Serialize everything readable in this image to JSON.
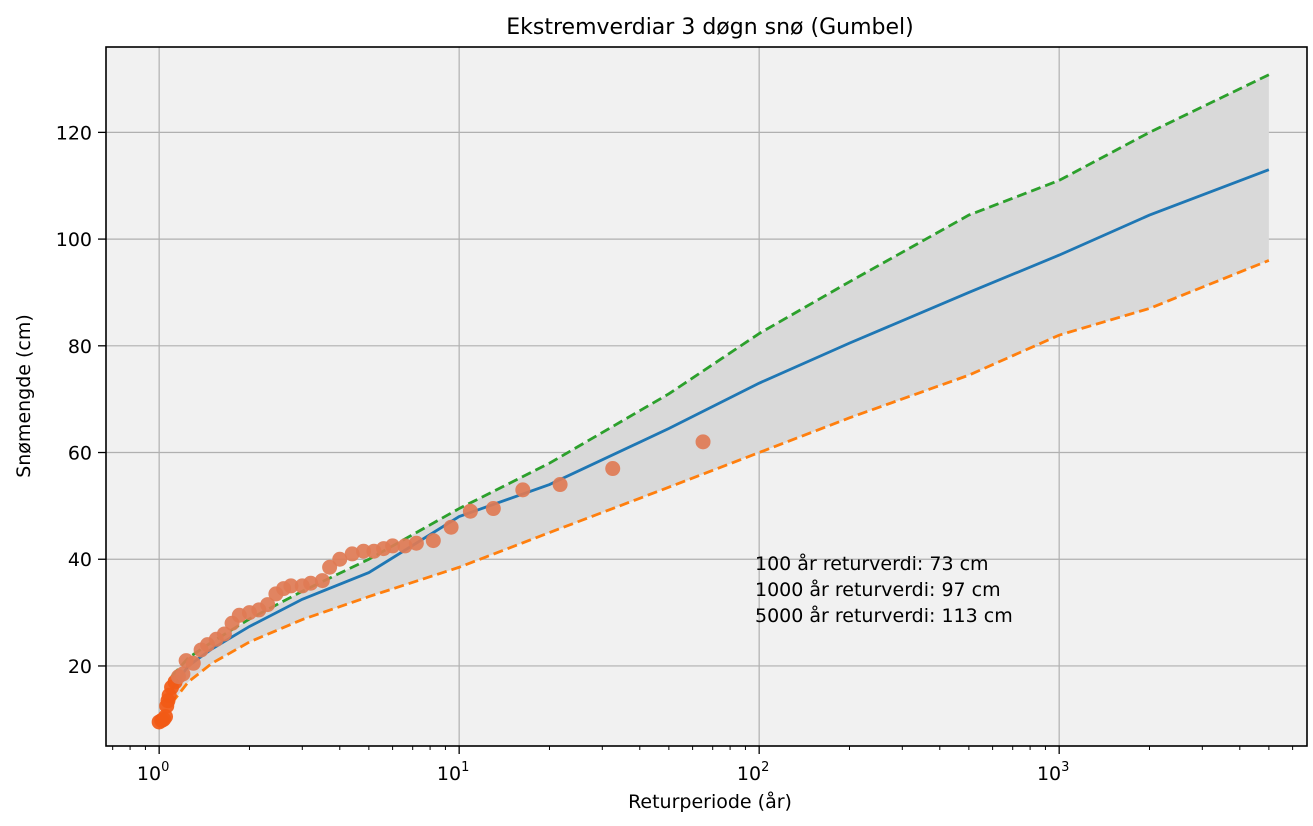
{
  "chart_data": {
    "type": "scatter",
    "title": "Ekstremverdiar 3 døgn snø (Gumbel)",
    "xlabel": "Returperiode (år)",
    "ylabel": "Snømengde (cm)",
    "x_scale": "log",
    "xlim": [
      0.665,
      6700
    ],
    "ylim": [
      5,
      136
    ],
    "x_ticks": [
      {
        "value": 1,
        "base": "10",
        "exp": "0"
      },
      {
        "value": 10,
        "base": "10",
        "exp": "1"
      },
      {
        "value": 100,
        "base": "10",
        "exp": "2"
      },
      {
        "value": 1000,
        "base": "10",
        "exp": "3"
      }
    ],
    "y_ticks": [
      20,
      40,
      60,
      80,
      100,
      120
    ],
    "grid": true,
    "colors": {
      "observed": "#e07b55",
      "observed_low": "#f25a16",
      "fit": "#1f77b4",
      "upper": "#2ca02c",
      "lower": "#ff7f0e",
      "band": "#d9d9d9",
      "plot_bg": "#f1f1f1"
    },
    "series": [
      {
        "kind": "scatter",
        "points": [
          [
            1.0,
            9.5
          ],
          [
            1.02,
            9.8
          ],
          [
            1.035,
            10.0
          ],
          [
            1.05,
            10.5
          ],
          [
            1.06,
            12.5
          ],
          [
            1.07,
            13.5
          ],
          [
            1.08,
            14.5
          ],
          [
            1.1,
            16.0
          ],
          [
            1.13,
            17.0
          ],
          [
            1.16,
            18.0
          ],
          [
            1.2,
            18.5
          ],
          [
            1.23,
            21.0
          ],
          [
            1.3,
            20.5
          ],
          [
            1.38,
            23.0
          ],
          [
            1.45,
            24.0
          ],
          [
            1.55,
            25.0
          ],
          [
            1.65,
            26.0
          ],
          [
            1.75,
            28.0
          ],
          [
            1.85,
            29.5
          ],
          [
            2.0,
            30.0
          ],
          [
            2.15,
            30.5
          ],
          [
            2.3,
            31.5
          ],
          [
            2.45,
            33.5
          ],
          [
            2.6,
            34.5
          ],
          [
            2.75,
            35.0
          ],
          [
            3.0,
            35.0
          ],
          [
            3.2,
            35.5
          ],
          [
            3.5,
            36.0
          ],
          [
            3.7,
            38.5
          ],
          [
            4.0,
            40.0
          ],
          [
            4.4,
            41.0
          ],
          [
            4.8,
            41.5
          ],
          [
            5.2,
            41.5
          ],
          [
            5.6,
            42.0
          ],
          [
            6.0,
            42.5
          ],
          [
            6.6,
            42.5
          ],
          [
            7.2,
            43.0
          ],
          [
            8.2,
            43.5
          ],
          [
            9.4,
            46.0
          ],
          [
            10.9,
            49.0
          ],
          [
            13.0,
            49.5
          ],
          [
            16.3,
            53.0
          ],
          [
            21.7,
            54.0
          ],
          [
            32.5,
            57.0
          ],
          [
            65.0,
            62.0
          ]
        ]
      },
      {
        "kind": "line",
        "points": [
          [
            1.1,
            15.5
          ],
          [
            1.25,
            20.0
          ],
          [
            1.5,
            23.2
          ],
          [
            2,
            27.4
          ],
          [
            3,
            32.5
          ],
          [
            5,
            37.5
          ],
          [
            10,
            48.0
          ],
          [
            20,
            54.0
          ],
          [
            50,
            64.5
          ],
          [
            100,
            73.0
          ],
          [
            200,
            80.5
          ],
          [
            500,
            90.0
          ],
          [
            1000,
            97.0
          ],
          [
            2000,
            104.5
          ],
          [
            5000,
            113.0
          ]
        ]
      },
      {
        "kind": "line",
        "points": [
          [
            1.1,
            18.0
          ],
          [
            1.25,
            21.5
          ],
          [
            1.5,
            24.5
          ],
          [
            2,
            28.8
          ],
          [
            3,
            34.0
          ],
          [
            5,
            40.0
          ],
          [
            10,
            49.5
          ],
          [
            20,
            58.0
          ],
          [
            50,
            71.0
          ],
          [
            100,
            82.3
          ],
          [
            200,
            92.0
          ],
          [
            500,
            104.5
          ],
          [
            1000,
            111.0
          ],
          [
            2000,
            120.0
          ],
          [
            5000,
            130.8
          ]
        ]
      },
      {
        "kind": "line",
        "points": [
          [
            1.1,
            13.0
          ],
          [
            1.25,
            17.0
          ],
          [
            1.5,
            20.5
          ],
          [
            2,
            24.5
          ],
          [
            3,
            28.7
          ],
          [
            5,
            33.0
          ],
          [
            10,
            38.5
          ],
          [
            20,
            45.0
          ],
          [
            50,
            53.5
          ],
          [
            100,
            60.0
          ],
          [
            200,
            66.5
          ],
          [
            500,
            74.5
          ],
          [
            1000,
            82.0
          ],
          [
            2000,
            87.0
          ],
          [
            5000,
            96.0
          ]
        ]
      }
    ],
    "annotations": [
      "100 år returverdi: 73 cm",
      "1000 år returverdi: 97 cm",
      "5000 år returverdi: 113 cm"
    ]
  }
}
